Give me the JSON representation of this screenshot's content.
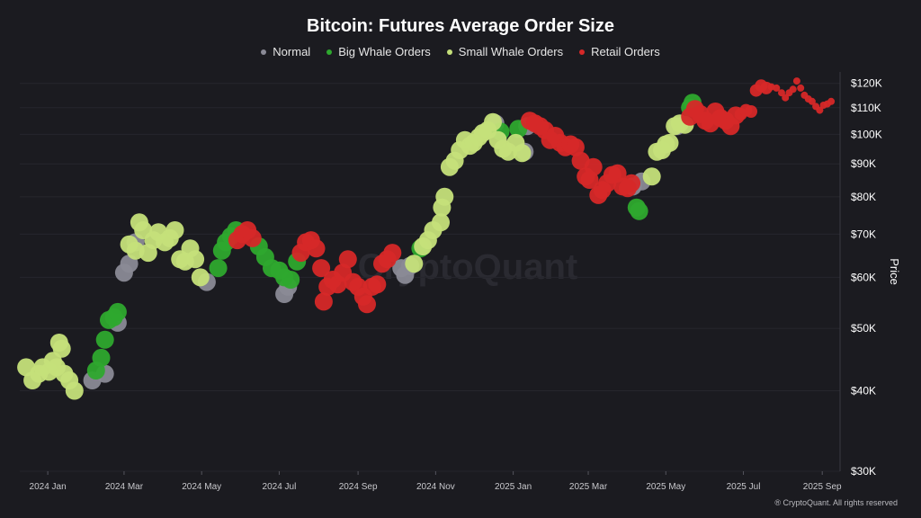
{
  "chart_data": {
    "type": "scatter",
    "title": "Bitcoin: Futures Average Order Size",
    "ylabel": "Price",
    "y_scale": "log",
    "ylim": [
      30000,
      125000
    ],
    "y_ticks": [
      {
        "value": 120000,
        "label": "$120K"
      },
      {
        "value": 110000,
        "label": "$110K"
      },
      {
        "value": 100000,
        "label": "$100K"
      },
      {
        "value": 90000,
        "label": "$90K"
      },
      {
        "value": 80000,
        "label": "$80K"
      },
      {
        "value": 70000,
        "label": "$70K"
      },
      {
        "value": 60000,
        "label": "$60K"
      },
      {
        "value": 50000,
        "label": "$50K"
      },
      {
        "value": 40000,
        "label": "$40K"
      },
      {
        "value": 30000,
        "label": "$30K"
      }
    ],
    "xlim": [
      "2023-12-10",
      "2025-09-15"
    ],
    "x_ticks": [
      {
        "value": "2024-01-01",
        "label": "2024 Jan"
      },
      {
        "value": "2024-03-01",
        "label": "2024 Mar"
      },
      {
        "value": "2024-05-01",
        "label": "2024 May"
      },
      {
        "value": "2024-07-01",
        "label": "2024 Jul"
      },
      {
        "value": "2024-09-01",
        "label": "2024 Sep"
      },
      {
        "value": "2024-11-01",
        "label": "2024 Nov"
      },
      {
        "value": "2025-01-01",
        "label": "2025 Jan"
      },
      {
        "value": "2025-03-01",
        "label": "2025 Mar"
      },
      {
        "value": "2025-05-01",
        "label": "2025 May"
      },
      {
        "value": "2025-07-01",
        "label": "2025 Jul"
      },
      {
        "value": "2025-09-01",
        "label": "2025 Sep"
      }
    ],
    "legend_position": "top-center",
    "grid": true,
    "watermark": "CryptoQuant",
    "series": [
      {
        "name": "Normal",
        "color": "#8a8a96",
        "points": [
          [
            "2024-02-05",
            41500
          ],
          [
            "2024-02-15",
            42500
          ],
          [
            "2024-02-25",
            51000
          ],
          [
            "2024-03-01",
            61000
          ],
          [
            "2024-03-05",
            63000
          ],
          [
            "2024-03-10",
            68000
          ],
          [
            "2024-05-05",
            59000
          ],
          [
            "2024-07-05",
            56500
          ],
          [
            "2024-07-08",
            58000
          ],
          [
            "2024-10-05",
            62000
          ],
          [
            "2024-10-08",
            60500
          ],
          [
            "2024-10-12",
            62500
          ],
          [
            "2024-12-15",
            102000
          ],
          [
            "2024-12-18",
            104000
          ],
          [
            "2025-01-10",
            94000
          ],
          [
            "2025-01-12",
            103000
          ],
          [
            "2025-04-05",
            83000
          ],
          [
            "2025-04-12",
            84500
          ],
          [
            "2025-05-10",
            103000
          ]
        ]
      },
      {
        "name": "Big Whale Orders",
        "color": "#2ea82e",
        "points": [
          [
            "2024-02-08",
            43000
          ],
          [
            "2024-02-12",
            45000
          ],
          [
            "2024-02-15",
            48000
          ],
          [
            "2024-02-18",
            51500
          ],
          [
            "2024-02-22",
            52000
          ],
          [
            "2024-02-25",
            53000
          ],
          [
            "2024-05-14",
            62000
          ],
          [
            "2024-05-17",
            66000
          ],
          [
            "2024-05-20",
            68000
          ],
          [
            "2024-05-24",
            69500
          ],
          [
            "2024-05-28",
            71000
          ],
          [
            "2024-06-15",
            67000
          ],
          [
            "2024-06-20",
            64500
          ],
          [
            "2024-06-25",
            62000
          ],
          [
            "2024-07-01",
            61500
          ],
          [
            "2024-07-05",
            60000
          ],
          [
            "2024-07-10",
            59500
          ],
          [
            "2024-07-15",
            63500
          ],
          [
            "2024-10-20",
            66500
          ],
          [
            "2024-12-22",
            101000
          ],
          [
            "2025-01-05",
            102000
          ],
          [
            "2025-04-08",
            77000
          ],
          [
            "2025-04-10",
            76000
          ],
          [
            "2025-05-20",
            110000
          ],
          [
            "2025-05-22",
            112000
          ]
        ]
      },
      {
        "name": "Small Whale Orders",
        "color": "#c5e07a",
        "points": [
          [
            "2023-12-15",
            43500
          ],
          [
            "2023-12-20",
            41500
          ],
          [
            "2023-12-25",
            42500
          ],
          [
            "2023-12-28",
            43500
          ],
          [
            "2024-01-02",
            42800
          ],
          [
            "2024-01-05",
            44500
          ],
          [
            "2024-01-08",
            43500
          ],
          [
            "2024-01-10",
            47500
          ],
          [
            "2024-01-12",
            46500
          ],
          [
            "2024-01-14",
            42500
          ],
          [
            "2024-01-18",
            41500
          ],
          [
            "2024-01-22",
            40000
          ],
          [
            "2024-03-05",
            67500
          ],
          [
            "2024-03-10",
            66000
          ],
          [
            "2024-03-13",
            73000
          ],
          [
            "2024-03-16",
            71000
          ],
          [
            "2024-03-20",
            65500
          ],
          [
            "2024-03-24",
            68500
          ],
          [
            "2024-03-28",
            70500
          ],
          [
            "2024-04-02",
            68000
          ],
          [
            "2024-04-06",
            69000
          ],
          [
            "2024-04-10",
            71000
          ],
          [
            "2024-04-14",
            64000
          ],
          [
            "2024-04-18",
            63500
          ],
          [
            "2024-04-22",
            66500
          ],
          [
            "2024-04-26",
            64000
          ],
          [
            "2024-04-30",
            60000
          ],
          [
            "2024-10-15",
            63000
          ],
          [
            "2024-10-22",
            67000
          ],
          [
            "2024-10-26",
            68500
          ],
          [
            "2024-10-30",
            71000
          ],
          [
            "2024-11-05",
            73000
          ],
          [
            "2024-11-06",
            77000
          ],
          [
            "2024-11-08",
            80000
          ],
          [
            "2024-11-12",
            89000
          ],
          [
            "2024-11-16",
            91000
          ],
          [
            "2024-11-20",
            94500
          ],
          [
            "2024-11-24",
            98000
          ],
          [
            "2024-11-28",
            96000
          ],
          [
            "2024-12-01",
            97000
          ],
          [
            "2024-12-05",
            99000
          ],
          [
            "2024-12-08",
            100500
          ],
          [
            "2024-12-12",
            101500
          ],
          [
            "2024-12-16",
            104500
          ],
          [
            "2024-12-20",
            98000
          ],
          [
            "2024-12-24",
            95000
          ],
          [
            "2024-12-28",
            94000
          ],
          [
            "2025-01-03",
            97000
          ],
          [
            "2025-01-08",
            93500
          ],
          [
            "2025-04-20",
            86000
          ],
          [
            "2025-04-24",
            94000
          ],
          [
            "2025-04-28",
            94500
          ],
          [
            "2025-05-01",
            96500
          ],
          [
            "2025-05-04",
            97000
          ],
          [
            "2025-05-08",
            103000
          ],
          [
            "2025-05-12",
            104000
          ],
          [
            "2025-05-16",
            103500
          ]
        ]
      },
      {
        "name": "Retail Orders",
        "color": "#d62828",
        "points": [
          [
            "2024-05-29",
            68500
          ],
          [
            "2024-06-02",
            70000
          ],
          [
            "2024-06-06",
            71000
          ],
          [
            "2024-06-10",
            69000
          ],
          [
            "2024-07-18",
            65500
          ],
          [
            "2024-07-22",
            68000
          ],
          [
            "2024-07-26",
            68500
          ],
          [
            "2024-07-30",
            66500
          ],
          [
            "2024-08-03",
            62000
          ],
          [
            "2024-08-05",
            55000
          ],
          [
            "2024-08-08",
            58000
          ],
          [
            "2024-08-12",
            59500
          ],
          [
            "2024-08-16",
            58500
          ],
          [
            "2024-08-20",
            61000
          ],
          [
            "2024-08-24",
            64000
          ],
          [
            "2024-08-28",
            59000
          ],
          [
            "2024-09-01",
            58000
          ],
          [
            "2024-09-05",
            56000
          ],
          [
            "2024-09-08",
            54500
          ],
          [
            "2024-09-12",
            58000
          ],
          [
            "2024-09-16",
            58500
          ],
          [
            "2024-09-20",
            63000
          ],
          [
            "2024-09-24",
            64000
          ],
          [
            "2024-09-28",
            65500
          ],
          [
            "2025-01-14",
            105000
          ],
          [
            "2025-01-18",
            104000
          ],
          [
            "2025-01-22",
            103000
          ],
          [
            "2025-01-26",
            101500
          ],
          [
            "2025-01-30",
            98000
          ],
          [
            "2025-02-03",
            99500
          ],
          [
            "2025-02-07",
            97000
          ],
          [
            "2025-02-11",
            95500
          ],
          [
            "2025-02-15",
            96500
          ],
          [
            "2025-02-19",
            95500
          ],
          [
            "2025-02-23",
            91000
          ],
          [
            "2025-02-27",
            86000
          ],
          [
            "2025-03-02",
            85000
          ],
          [
            "2025-03-05",
            89000
          ],
          [
            "2025-03-09",
            80500
          ],
          [
            "2025-03-12",
            82000
          ],
          [
            "2025-03-16",
            84000
          ],
          [
            "2025-03-20",
            86500
          ],
          [
            "2025-03-24",
            87000
          ],
          [
            "2025-03-28",
            83000
          ],
          [
            "2025-04-01",
            82500
          ],
          [
            "2025-04-04",
            84000
          ],
          [
            "2025-05-20",
            106500
          ],
          [
            "2025-05-24",
            109500
          ],
          [
            "2025-05-28",
            107500
          ],
          [
            "2025-06-01",
            105000
          ],
          [
            "2025-06-05",
            104000
          ],
          [
            "2025-06-09",
            108500
          ],
          [
            "2025-06-13",
            106000
          ],
          [
            "2025-06-17",
            105000
          ],
          [
            "2025-06-21",
            103000
          ],
          [
            "2025-06-25",
            107000
          ],
          [
            "2025-06-29",
            107500
          ],
          [
            "2025-07-03",
            109000
          ],
          [
            "2025-07-07",
            108500
          ],
          [
            "2025-07-11",
            117000
          ],
          [
            "2025-07-15",
            119000
          ],
          [
            "2025-07-19",
            118000
          ],
          [
            "2025-07-23",
            118500
          ],
          [
            "2025-07-27",
            118000
          ],
          [
            "2025-07-31",
            116000
          ],
          [
            "2025-08-03",
            114000
          ],
          [
            "2025-08-06",
            116000
          ],
          [
            "2025-08-09",
            117500
          ],
          [
            "2025-08-12",
            121000
          ],
          [
            "2025-08-15",
            118000
          ],
          [
            "2025-08-18",
            115000
          ],
          [
            "2025-08-21",
            113500
          ],
          [
            "2025-08-24",
            112500
          ],
          [
            "2025-08-27",
            110500
          ],
          [
            "2025-08-30",
            109000
          ],
          [
            "2025-09-02",
            111000
          ],
          [
            "2025-09-05",
            111500
          ],
          [
            "2025-09-08",
            112500
          ]
        ]
      }
    ]
  },
  "legend": [
    {
      "label": "Normal",
      "color": "#8a8a96"
    },
    {
      "label": "Big Whale Orders",
      "color": "#2ea82e"
    },
    {
      "label": "Small Whale Orders",
      "color": "#c5e07a"
    },
    {
      "label": "Retail Orders",
      "color": "#d62828"
    }
  ],
  "copyright": "® CryptoQuant. All rights reserved"
}
